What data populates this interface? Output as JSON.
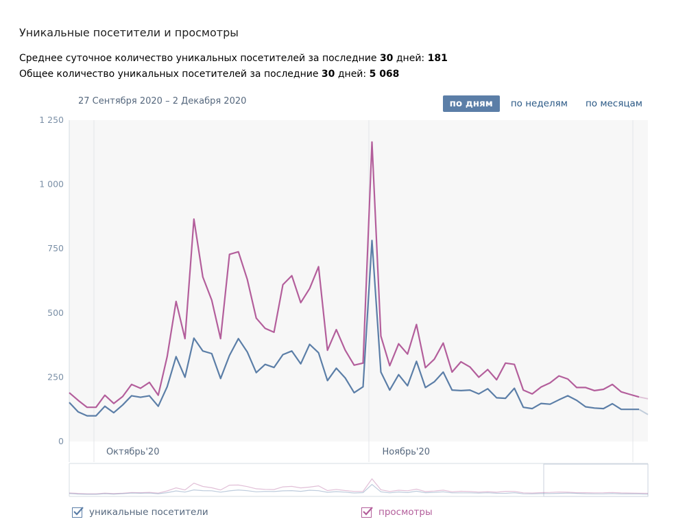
{
  "header": {
    "title": "Уникальные посетители и просмотры",
    "avg_prefix": "Среднее суточное количество уникальных посетителей за последние ",
    "avg_days": "30",
    "avg_mid": " дней: ",
    "avg_value": "181",
    "total_prefix": "Общее количество уникальных посетителей за последние ",
    "total_days": "30",
    "total_mid": " дней: ",
    "total_value": "5 068"
  },
  "date_range": "27 Сентября 2020 – 2 Декабря 2020",
  "tabs": [
    {
      "label": "по дням",
      "active": true
    },
    {
      "label": "по неделям",
      "active": false
    },
    {
      "label": "по месяцам",
      "active": false
    }
  ],
  "legend": {
    "visitors": "уникальные посетители",
    "views": "просмотры"
  },
  "colors": {
    "visitors": "#5b7ea7",
    "views": "#b35e9b",
    "tab_active": "#5b7ea7",
    "link": "#2a5885"
  },
  "chart_data": {
    "type": "line",
    "y_ticks": [
      "1 250",
      "1 000",
      "750",
      "500",
      "250",
      "0"
    ],
    "y_tick_values": [
      1250,
      1000,
      750,
      500,
      250,
      0
    ],
    "ylim": [
      0,
      1250
    ],
    "x_labels": [
      "Октябрь'20",
      "Ноябрь'20"
    ],
    "x_label_day_index": [
      4,
      35
    ],
    "series": [
      {
        "name": "уникальные посетители",
        "values": [
          152,
          115,
          100,
          100,
          137,
          112,
          142,
          178,
          172,
          178,
          137,
          213,
          330,
          250,
          402,
          352,
          342,
          245,
          335,
          400,
          348,
          268,
          300,
          288,
          338,
          352,
          302,
          378,
          345,
          237,
          285,
          247,
          190,
          213,
          782,
          270,
          200,
          260,
          217,
          312,
          210,
          232,
          270,
          200,
          198,
          200,
          185,
          205,
          170,
          168,
          207,
          133,
          128,
          148,
          145,
          162,
          178,
          160,
          135,
          130,
          128,
          147,
          125,
          125,
          125,
          105
        ]
      },
      {
        "name": "просмотры",
        "values": [
          190,
          160,
          133,
          133,
          180,
          148,
          175,
          222,
          207,
          230,
          180,
          330,
          545,
          400,
          865,
          640,
          550,
          400,
          728,
          738,
          630,
          480,
          440,
          425,
          610,
          645,
          540,
          595,
          680,
          355,
          435,
          355,
          297,
          305,
          1165,
          410,
          295,
          380,
          340,
          455,
          287,
          320,
          383,
          270,
          310,
          290,
          250,
          280,
          240,
          305,
          300,
          200,
          185,
          212,
          228,
          255,
          243,
          210,
          210,
          198,
          203,
          222,
          193,
          183,
          173,
          166
        ]
      }
    ]
  }
}
